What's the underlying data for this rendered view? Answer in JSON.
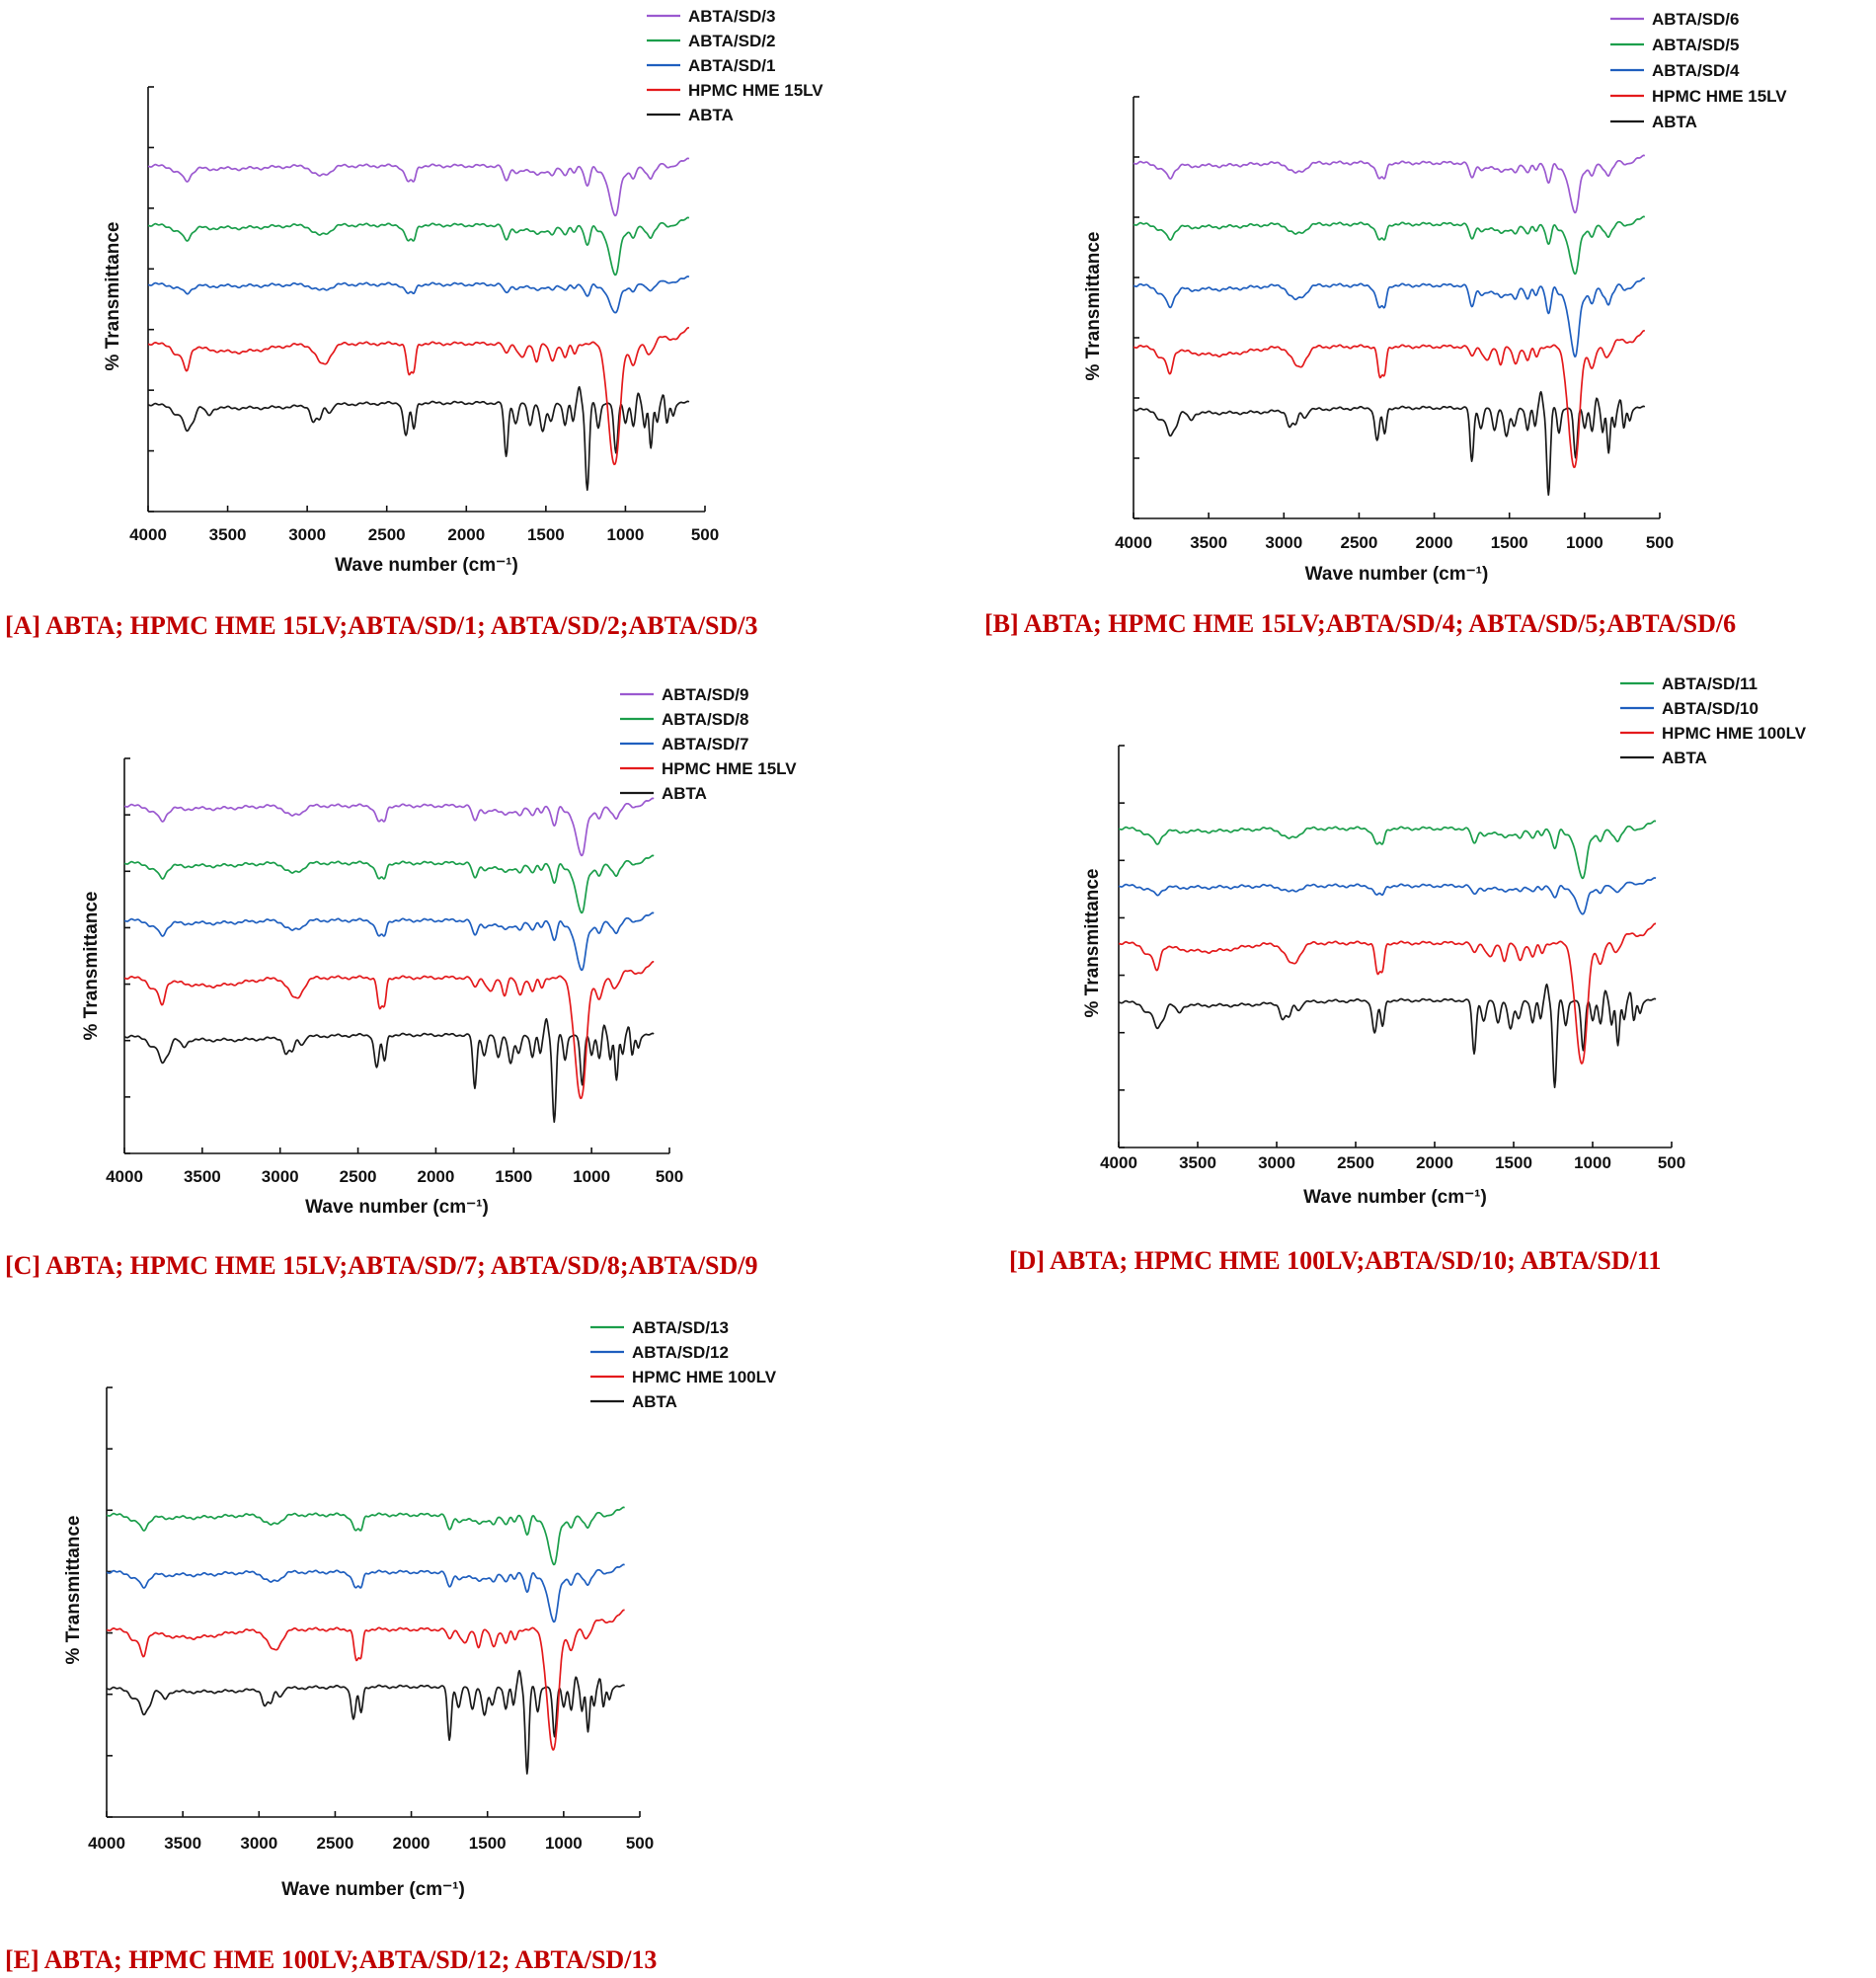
{
  "colors": {
    "ABTA": "#1a1a1a",
    "HPMC": "#e41a1c",
    "blue": "#1f5fbf",
    "green": "#1b9e4b",
    "purple": "#9b59d0",
    "caption": "#c00000"
  },
  "chart_data": [
    {
      "id": "A",
      "type": "line",
      "caption": "[A] ABTA; HPMC HME 15LV;ABTA/SD/1; ABTA/SD/2;ABTA/SD/3",
      "xlabel": "Wave number (cm⁻¹)",
      "ylabel": "% Transmittance",
      "xlim": [
        4000,
        500
      ],
      "xticks": [
        "4000",
        "3500",
        "3000",
        "2500",
        "2000",
        "1500",
        "1000",
        "500"
      ],
      "polymer": "15LV",
      "legend": [
        "ABTA/SD/3",
        "ABTA/SD/2",
        "ABTA/SD/1",
        "HPMC HME 15LV",
        "ABTA"
      ],
      "series": [
        {
          "name": "ABTA",
          "color": "ABTA",
          "type": "abta",
          "offset": 0
        },
        {
          "name": "HPMC HME 15LV",
          "color": "HPMC",
          "type": "hpmc",
          "offset": 1
        },
        {
          "name": "ABTA/SD/1",
          "color": "blue",
          "type": "sd_weak",
          "offset": 2
        },
        {
          "name": "ABTA/SD/2",
          "color": "green",
          "type": "sd_mid",
          "offset": 3
        },
        {
          "name": "ABTA/SD/3",
          "color": "purple",
          "type": "sd_mid",
          "offset": 4
        }
      ]
    },
    {
      "id": "B",
      "type": "line",
      "caption": "[B] ABTA; HPMC HME 15LV;ABTA/SD/4; ABTA/SD/5;ABTA/SD/6",
      "xlabel": "Wave number (cm⁻¹)",
      "ylabel": "% Transmittance",
      "xlim": [
        4000,
        500
      ],
      "xticks": [
        "4000",
        "3500",
        "3000",
        "2500",
        "2000",
        "1500",
        "1000",
        "500"
      ],
      "polymer": "15LV",
      "legend": [
        "ABTA/SD/6",
        "ABTA/SD/5",
        "ABTA/SD/4",
        "HPMC HME 15LV",
        "ABTA"
      ],
      "series": [
        {
          "name": "ABTA",
          "color": "ABTA",
          "type": "abta",
          "offset": 0
        },
        {
          "name": "HPMC HME 15LV",
          "color": "HPMC",
          "type": "hpmc",
          "offset": 1
        },
        {
          "name": "ABTA/SD/4",
          "color": "blue",
          "type": "sd_strong",
          "offset": 2
        },
        {
          "name": "ABTA/SD/5",
          "color": "green",
          "type": "sd_mid",
          "offset": 3
        },
        {
          "name": "ABTA/SD/6",
          "color": "purple",
          "type": "sd_mid",
          "offset": 4
        }
      ]
    },
    {
      "id": "C",
      "type": "line",
      "caption": "[C] ABTA; HPMC HME 15LV;ABTA/SD/7; ABTA/SD/8;ABTA/SD/9",
      "xlabel": "Wave number (cm⁻¹)",
      "ylabel": "% Transmittance",
      "xlim": [
        4000,
        500
      ],
      "xticks": [
        "4000",
        "3500",
        "3000",
        "2500",
        "2000",
        "1500",
        "1000",
        "500"
      ],
      "polymer": "15LV",
      "legend": [
        "ABTA/SD/9",
        "ABTA/SD/8",
        "ABTA/SD/7",
        "HPMC HME 15LV",
        "ABTA"
      ],
      "series": [
        {
          "name": "ABTA",
          "color": "ABTA",
          "type": "abta",
          "offset": 0
        },
        {
          "name": "HPMC HME 15LV",
          "color": "HPMC",
          "type": "hpmc",
          "offset": 1
        },
        {
          "name": "ABTA/SD/7",
          "color": "blue",
          "type": "sd_mid",
          "offset": 2
        },
        {
          "name": "ABTA/SD/8",
          "color": "green",
          "type": "sd_mid",
          "offset": 3
        },
        {
          "name": "ABTA/SD/9",
          "color": "purple",
          "type": "sd_mid",
          "offset": 4
        }
      ]
    },
    {
      "id": "D",
      "type": "line",
      "caption": "[D] ABTA; HPMC HME 100LV;ABTA/SD/10; ABTA/SD/11",
      "xlabel": "Wave number (cm⁻¹)",
      "ylabel": "% Transmittance",
      "xlim": [
        4000,
        500
      ],
      "xticks": [
        "4000",
        "3500",
        "3000",
        "2500",
        "2000",
        "1500",
        "1000",
        "500"
      ],
      "polymer": "100LV",
      "legend": [
        "ABTA/SD/11",
        "ABTA/SD/10",
        "HPMC HME 100LV",
        "ABTA"
      ],
      "series": [
        {
          "name": "ABTA",
          "color": "ABTA",
          "type": "abta",
          "offset": 0
        },
        {
          "name": "HPMC HME 100LV",
          "color": "HPMC",
          "type": "hpmc",
          "offset": 1
        },
        {
          "name": "ABTA/SD/10",
          "color": "blue",
          "type": "sd_weak",
          "offset": 2
        },
        {
          "name": "ABTA/SD/11",
          "color": "green",
          "type": "sd_mid",
          "offset": 3
        }
      ]
    },
    {
      "id": "E",
      "type": "line",
      "caption": "[E] ABTA; HPMC HME 100LV;ABTA/SD/12; ABTA/SD/13",
      "xlabel": "Wave number (cm⁻¹)",
      "ylabel": "% Transmittance",
      "xlim": [
        4000,
        500
      ],
      "xticks": [
        "4000",
        "3500",
        "3000",
        "2500",
        "2000",
        "1500",
        "1000",
        "500"
      ],
      "polymer": "100LV",
      "legend": [
        "ABTA/SD/13",
        "ABTA/SD/12",
        "HPMC HME 100LV",
        "ABTA"
      ],
      "series": [
        {
          "name": "ABTA",
          "color": "ABTA",
          "type": "abta",
          "offset": 0
        },
        {
          "name": "HPMC HME 100LV",
          "color": "HPMC",
          "type": "hpmc",
          "offset": 1
        },
        {
          "name": "ABTA/SD/12",
          "color": "blue",
          "type": "sd_mid",
          "offset": 2
        },
        {
          "name": "ABTA/SD/13",
          "color": "green",
          "type": "sd_mid",
          "offset": 3
        }
      ]
    }
  ]
}
